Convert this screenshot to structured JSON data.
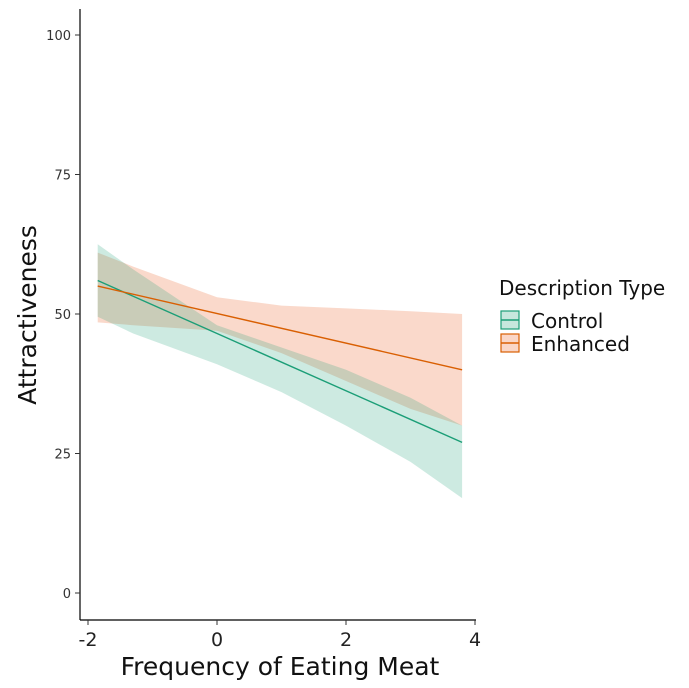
{
  "colors": {
    "control": "#1b9e77",
    "enhanced": "#d95f02",
    "control_fill": "#1b9e77",
    "enhanced_fill": "#f4a582"
  },
  "chart_data": {
    "type": "line",
    "xlabel": "Frequency of Eating Meat",
    "ylabel": "Attractiveness",
    "xlim": [
      -2,
      4
    ],
    "ylim": [
      0,
      100
    ],
    "x_ticks": [
      -2,
      0,
      2,
      4
    ],
    "y_ticks": [
      0,
      25,
      50,
      75,
      100
    ],
    "grid": false,
    "legend": {
      "title": "Description Type",
      "position": "right"
    },
    "series": [
      {
        "name": "Control",
        "x": [
          -1.85,
          3.8
        ],
        "y": [
          56,
          27
        ],
        "band_x": [
          -1.85,
          -1.3,
          0,
          1,
          2,
          3,
          3.8
        ],
        "band_lower": [
          49.5,
          46.5,
          41,
          36,
          30,
          23.5,
          17
        ],
        "band_upper": [
          62.5,
          58,
          48,
          44,
          40,
          35,
          30
        ]
      },
      {
        "name": "Enhanced",
        "x": [
          -1.85,
          3.8
        ],
        "y": [
          55,
          40
        ],
        "band_x": [
          -1.85,
          -1.3,
          0,
          1,
          2,
          3,
          3.8
        ],
        "band_lower": [
          48.5,
          48,
          47,
          43,
          38,
          33,
          30
        ],
        "band_upper": [
          61,
          58.5,
          53,
          51.5,
          51,
          50.5,
          50
        ]
      }
    ]
  }
}
